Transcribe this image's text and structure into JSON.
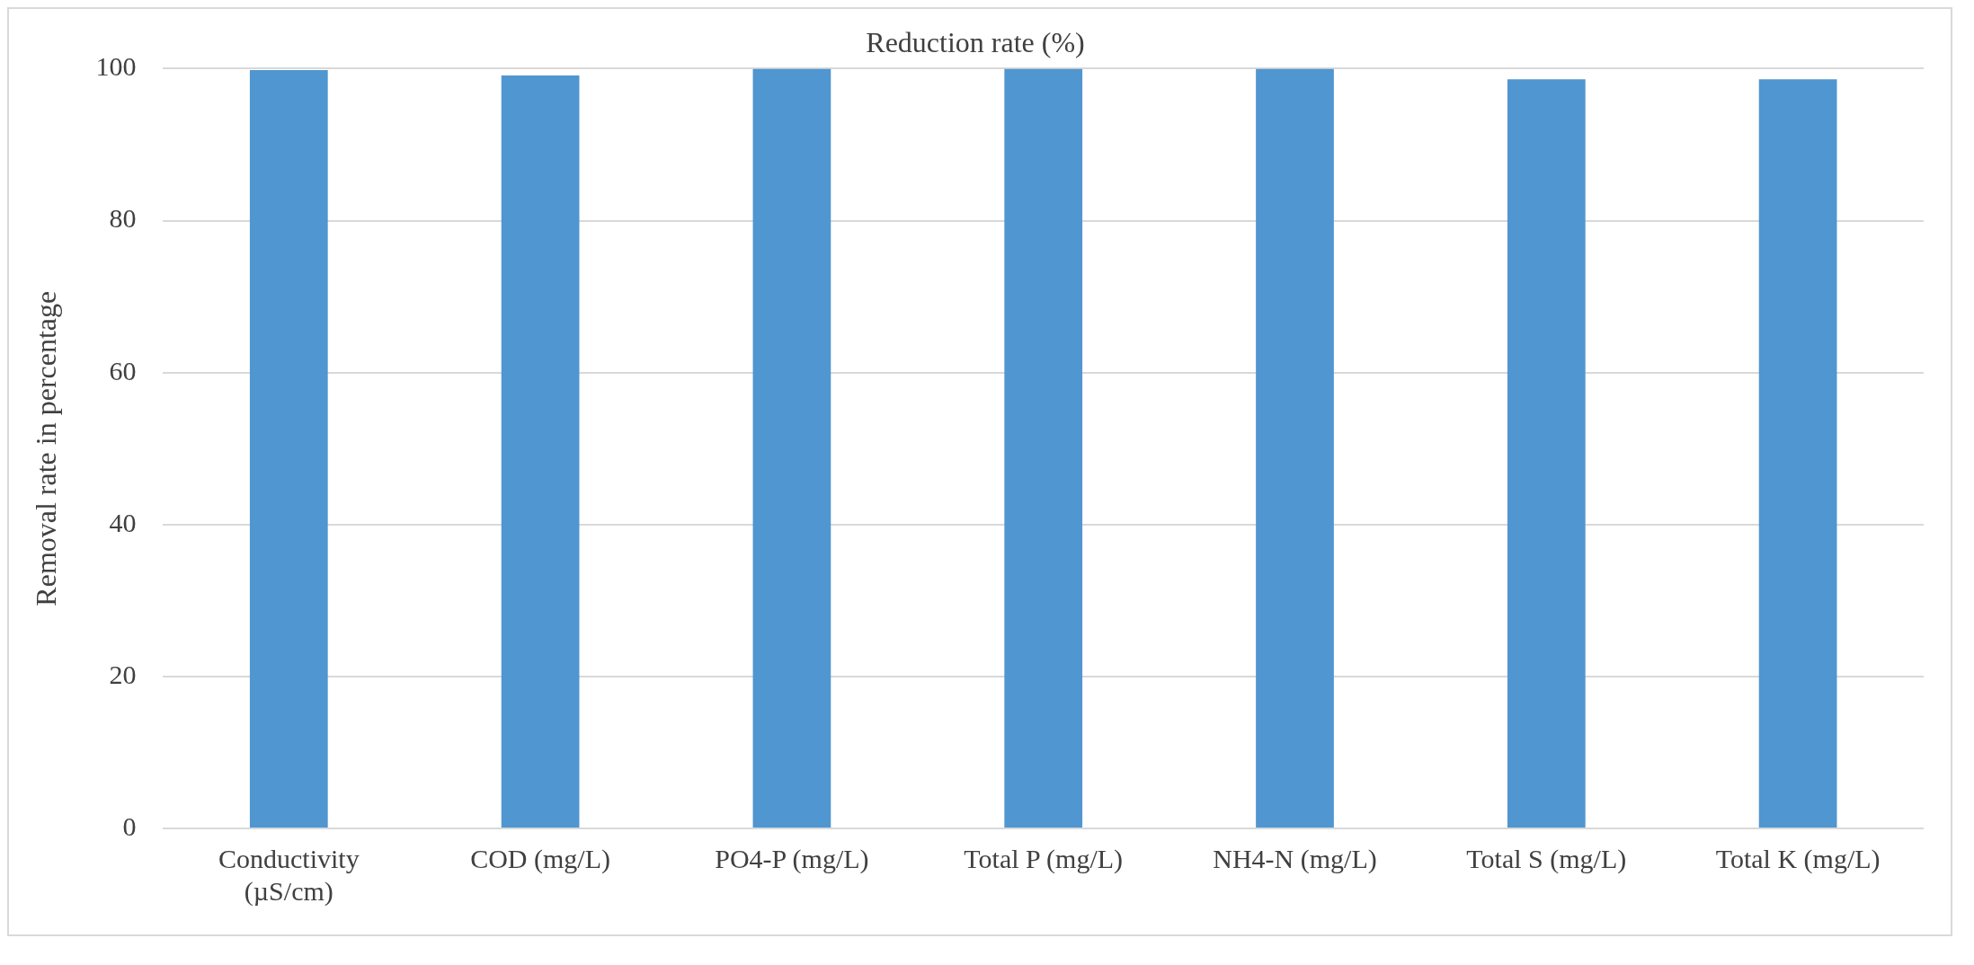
{
  "chart_data": {
    "type": "bar",
    "title": "Reduction rate (%)",
    "ylabel": "Removal rate in percentage",
    "categories": [
      "Conductivity (µS/cm)",
      "COD (mg/L)",
      "PO4-P (mg/L)",
      "Total P (mg/L)",
      "NH4-N (mg/L)",
      "Total S (mg/L)",
      "Total K (mg/L)"
    ],
    "values": [
      99.8,
      99.1,
      100,
      100,
      100,
      98.6,
      98.6
    ],
    "color": "#5096d0",
    "ylim": [
      0,
      100
    ],
    "yticks": [
      0,
      20,
      40,
      60,
      80,
      100
    ],
    "grid": "y",
    "legend": false
  }
}
